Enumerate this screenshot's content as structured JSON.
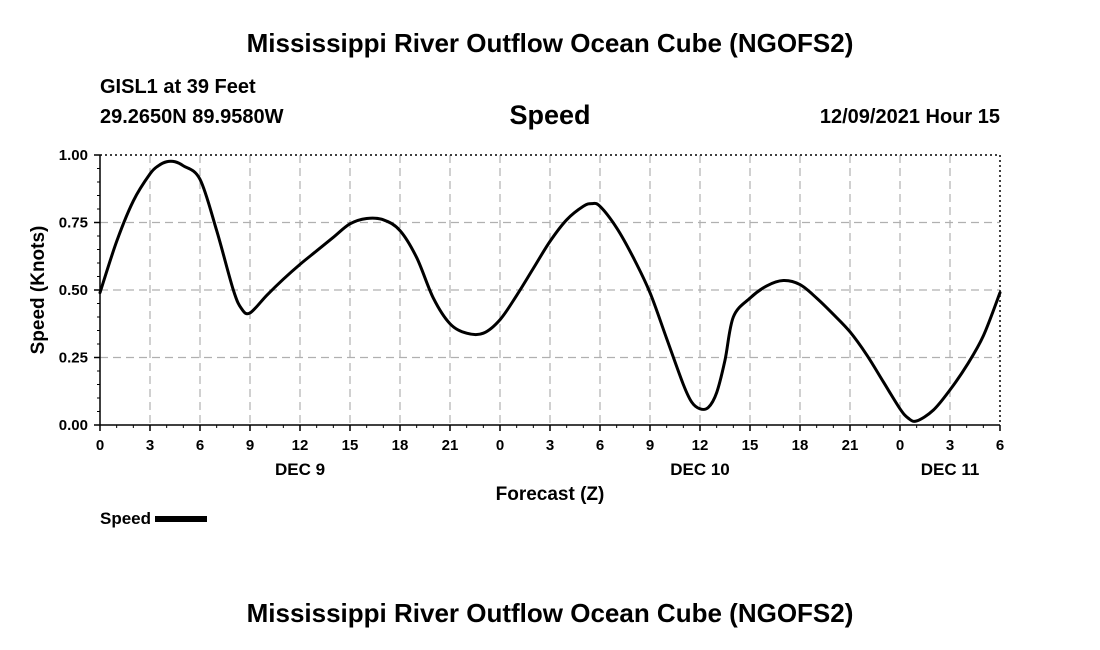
{
  "page": {
    "title": "Mississippi River Outflow Ocean Cube (NGOFS2)",
    "station": "GISL1 at 39 Feet",
    "coords": "29.2650N  89.9580W",
    "subtitle": "Speed",
    "datetime": "12/09/2021 Hour 15",
    "footer_title": "Mississippi River Outflow Ocean Cube (NGOFS2)"
  },
  "colors": {
    "line": "#000000",
    "grid": "#b0b0b0",
    "axis": "#000000"
  },
  "chart_data": {
    "type": "line",
    "title": "Speed",
    "xlabel": "Forecast (Z)",
    "ylabel": "Speed (Knots)",
    "xlim": [
      0,
      54
    ],
    "ylim": [
      0,
      1
    ],
    "grid": true,
    "legend": "bottom-left",
    "legend_label": "Speed",
    "x_ticks": [
      0,
      3,
      6,
      9,
      12,
      15,
      18,
      21,
      24,
      27,
      30,
      33,
      36,
      39,
      42,
      45,
      48,
      51,
      54
    ],
    "x_tick_labels": [
      "0",
      "3",
      "6",
      "9",
      "12",
      "15",
      "18",
      "21",
      "0",
      "3",
      "6",
      "9",
      "12",
      "15",
      "18",
      "21",
      "0",
      "3",
      "6"
    ],
    "y_ticks": [
      0,
      0.25,
      0.5,
      0.75,
      1.0
    ],
    "y_tick_labels": [
      "0.00",
      "0.25",
      "0.50",
      "0.75",
      "1.00"
    ],
    "day_labels": [
      {
        "x": 12,
        "label": "DEC 9"
      },
      {
        "x": 36,
        "label": "DEC 10"
      },
      {
        "x": 51,
        "label": "DEC 11"
      }
    ],
    "series": [
      {
        "name": "Speed",
        "x": [
          0,
          1,
          2,
          3,
          3.5,
          4,
          4.5,
          5,
          6,
          7,
          8,
          8.5,
          9,
          10,
          11,
          12,
          13,
          14,
          15,
          16,
          17,
          18,
          19,
          20,
          21,
          22,
          23,
          24,
          25,
          26,
          27,
          28,
          29,
          29.5,
          30,
          31,
          32,
          33,
          34,
          35,
          35.5,
          36,
          36.5,
          37,
          37.5,
          38,
          39,
          40,
          41,
          42,
          43,
          44,
          45,
          46,
          47,
          48,
          48.5,
          49,
          50,
          51,
          52,
          53,
          54
        ],
        "values": [
          0.49,
          0.68,
          0.83,
          0.93,
          0.96,
          0.975,
          0.975,
          0.96,
          0.91,
          0.72,
          0.5,
          0.43,
          0.415,
          0.48,
          0.54,
          0.595,
          0.645,
          0.695,
          0.745,
          0.765,
          0.76,
          0.72,
          0.62,
          0.47,
          0.375,
          0.34,
          0.34,
          0.39,
          0.48,
          0.58,
          0.68,
          0.76,
          0.81,
          0.82,
          0.81,
          0.73,
          0.62,
          0.49,
          0.32,
          0.15,
          0.085,
          0.06,
          0.065,
          0.12,
          0.24,
          0.4,
          0.47,
          0.515,
          0.535,
          0.52,
          0.47,
          0.41,
          0.345,
          0.26,
          0.16,
          0.06,
          0.025,
          0.015,
          0.055,
          0.13,
          0.22,
          0.33,
          0.49
        ]
      }
    ]
  }
}
